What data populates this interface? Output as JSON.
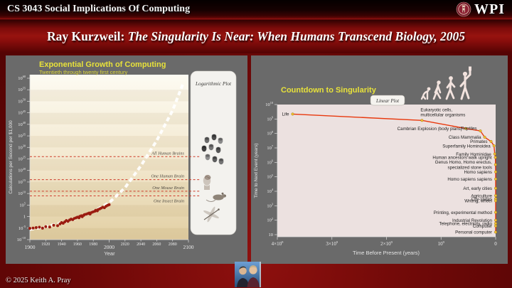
{
  "header": {
    "course_title": "CS 3043 Social Implications Of Computing",
    "logo_text": "WPI"
  },
  "banner": {
    "prefix": "Ray Kurzweil: ",
    "book_title": "The Singularity Is Near: When Humans Transcend Biology, 2005"
  },
  "footer": {
    "copyright": "© 2025 Keith A. Pray",
    "thumbnail_icon": "two-people-photo"
  },
  "colors": {
    "accent_yellow": "#e8e23a",
    "slide_maroon": "#6f0908",
    "panel_gray": "#6a6a6a",
    "scatter_red": "#9b1c10",
    "threshold_red": "#cd3a28",
    "trend_white": "#ffffff",
    "curve_red": "#e8380d",
    "event_dot_yellow": "#f2c12e"
  },
  "chart_data": [
    {
      "type": "scatter",
      "title": "Exponential Growth of Computing",
      "subtitle": "Twentieth through twenty first century",
      "badge": "Logarithmic Plot",
      "xlabel": "Year",
      "ylabel": "Calculations per Second per $1,000",
      "xlim": [
        1900,
        2100
      ],
      "ylim_log10": [
        -10,
        60
      ],
      "x_ticks": [
        1900,
        1920,
        1940,
        1960,
        1980,
        2000,
        2020,
        2040,
        2060,
        2080,
        2100
      ],
      "y_ticks_log10": [
        60,
        55,
        50,
        45,
        40,
        35,
        30,
        25,
        20,
        15,
        10,
        5,
        0,
        -5,
        -10
      ],
      "grid": false,
      "thresholds": [
        {
          "label": "All Human Brains",
          "log10_value": 26
        },
        {
          "label": "One Human Brain",
          "log10_value": 16
        },
        {
          "label": "One Mouse Brain",
          "log10_value": 11
        },
        {
          "label": "One Insect Brain",
          "log10_value": 9,
          "label_below": true
        }
      ],
      "trend_log10": [
        [
          1900,
          -5.6
        ],
        [
          1920,
          -4.4
        ],
        [
          1940,
          -2.7
        ],
        [
          1960,
          -0.6
        ],
        [
          1980,
          2.2
        ],
        [
          2000,
          6
        ],
        [
          2020,
          12.5
        ],
        [
          2040,
          22
        ],
        [
          2060,
          33
        ],
        [
          2080,
          46
        ],
        [
          2093,
          57.5
        ]
      ],
      "points_log10": [
        [
          1900,
          -5.1
        ],
        [
          1904,
          -5.0
        ],
        [
          1908,
          -4.75
        ],
        [
          1912,
          -4.6
        ],
        [
          1916,
          -5.05
        ],
        [
          1920,
          -4.4
        ],
        [
          1925,
          -4.55
        ],
        [
          1930,
          -3.75
        ],
        [
          1935,
          -3.95
        ],
        [
          1938,
          -3.2
        ],
        [
          1940,
          -2.6
        ],
        [
          1942,
          -2.9
        ],
        [
          1944,
          -2.3
        ],
        [
          1946,
          -1.7
        ],
        [
          1948,
          -2.05
        ],
        [
          1950,
          -1.5
        ],
        [
          1952,
          -1.1
        ],
        [
          1954,
          -1.35
        ],
        [
          1956,
          -0.8
        ],
        [
          1958,
          -0.55
        ],
        [
          1960,
          -0.25
        ],
        [
          1962,
          -0.5
        ],
        [
          1963,
          0.1
        ],
        [
          1965,
          0.35
        ],
        [
          1966,
          -0.05
        ],
        [
          1968,
          0.55
        ],
        [
          1969,
          0.9
        ],
        [
          1971,
          1.05
        ],
        [
          1973,
          1.3
        ],
        [
          1975,
          1.55
        ],
        [
          1976,
          1.1
        ],
        [
          1978,
          1.85
        ],
        [
          1980,
          2.1
        ],
        [
          1982,
          2.35
        ],
        [
          1983,
          2.7
        ],
        [
          1985,
          2.5
        ],
        [
          1986,
          3.05
        ],
        [
          1988,
          3.35
        ],
        [
          1990,
          3.7
        ],
        [
          1992,
          4.05
        ],
        [
          1994,
          3.85
        ],
        [
          1996,
          4.45
        ],
        [
          1998,
          4.85
        ],
        [
          2000,
          5.15
        ]
      ],
      "illustrations": [
        "all-human-brains",
        "one-human-brain",
        "one-mouse-brain",
        "one-insect-brain"
      ]
    },
    {
      "type": "line",
      "title": "Countdown to Singularity",
      "badge": "Linear Plot",
      "xlabel": "Time Before Present (years)",
      "ylabel": "Time to Next Event (years)",
      "xlim_years_bp": [
        4000000000.0,
        0
      ],
      "ylim_log10": [
        1,
        10
      ],
      "x_ticks": [
        {
          "coef": "4×10",
          "exp": "9",
          "value": 4000000000.0
        },
        {
          "coef": "3×10",
          "exp": "9",
          "value": 3000000000.0
        },
        {
          "coef": "2×10",
          "exp": "9",
          "value": 2000000000.0
        },
        {
          "coef": "10",
          "exp": "9",
          "value": 1000000000.0
        },
        {
          "coef": "0",
          "value": 0
        }
      ],
      "y_ticks_log10": [
        10,
        9,
        8,
        7,
        6,
        5,
        4,
        3,
        2,
        1
      ],
      "grid": false,
      "events": [
        {
          "label": "Life",
          "x_years_bp": 3720000000.0,
          "y_years_to_next": 2200000000.0
        },
        {
          "label": "Eukaryotic cells,\nmulticellular organisms",
          "x_years_bp": 1350000000.0,
          "y_years_to_next": 800000000.0,
          "placement": "above"
        },
        {
          "label": "Cambrian Explosion (body plans)",
          "x_years_bp": 550000000.0,
          "y_years_to_next": 220000000.0
        },
        {
          "label": "Reptiles",
          "x_years_bp": 280000000.0,
          "y_years_to_next": 150000000.0,
          "dy": -4
        },
        {
          "label": "Class Mammalia",
          "x_years_bp": 200000000.0,
          "y_years_to_next": 55000000.0
        },
        {
          "label": "Primates",
          "x_years_bp": 85000000.0,
          "y_years_to_next": 28000000.0
        },
        {
          "label": "Superfamily Hominoidea",
          "x_years_bp": 30000000.0,
          "y_years_to_next": 14000000.0
        },
        {
          "label": "Family Hominidae",
          "x_years_bp": 15000000.0,
          "y_years_to_next": 3800000.0
        },
        {
          "label": "Human ancestors walk upright",
          "x_years_bp": 5000000.0,
          "y_years_to_next": 2200000.0
        },
        {
          "label": "Genus Homo, Homo erectus,\nspecialized stone tools",
          "x_years_bp": 2000000.0,
          "y_years_to_next": 700000.0
        },
        {
          "label": "Homo sapiens",
          "x_years_bp": 500000.0,
          "y_years_to_next": 220000.0
        },
        {
          "label": "Homo sapiens sapiens",
          "x_years_bp": 150000.0,
          "y_years_to_next": 70000.0
        },
        {
          "label": "Art, early cities",
          "x_years_bp": 30000.0,
          "y_years_to_next": 16000.0
        },
        {
          "label": "Agriculture",
          "x_years_bp": 12000.0,
          "y_years_to_next": 5000.0
        },
        {
          "label": "City-states",
          "x_years_bp": 6000.0,
          "y_years_to_next": 3000.0
        },
        {
          "label": "Writing, wheel",
          "x_years_bp": 5000.0,
          "y_years_to_next": 2200.0
        },
        {
          "label": "Printing, experimental method",
          "x_years_bp": 500.0,
          "y_years_to_next": 350.0
        },
        {
          "label": "Industrial Revolution",
          "x_years_bp": 250.0,
          "y_years_to_next": 100.0
        },
        {
          "label": "Telephone, electricity, radio",
          "x_years_bp": 130.0,
          "y_years_to_next": 60.0
        },
        {
          "label": "Computer",
          "x_years_bp": 70.0,
          "y_years_to_next": 40.0
        },
        {
          "label": "Personal computer",
          "x_years_bp": 30.0,
          "y_years_to_next": 15.0
        }
      ],
      "decorations": [
        "evolution-silhouettes"
      ]
    }
  ]
}
